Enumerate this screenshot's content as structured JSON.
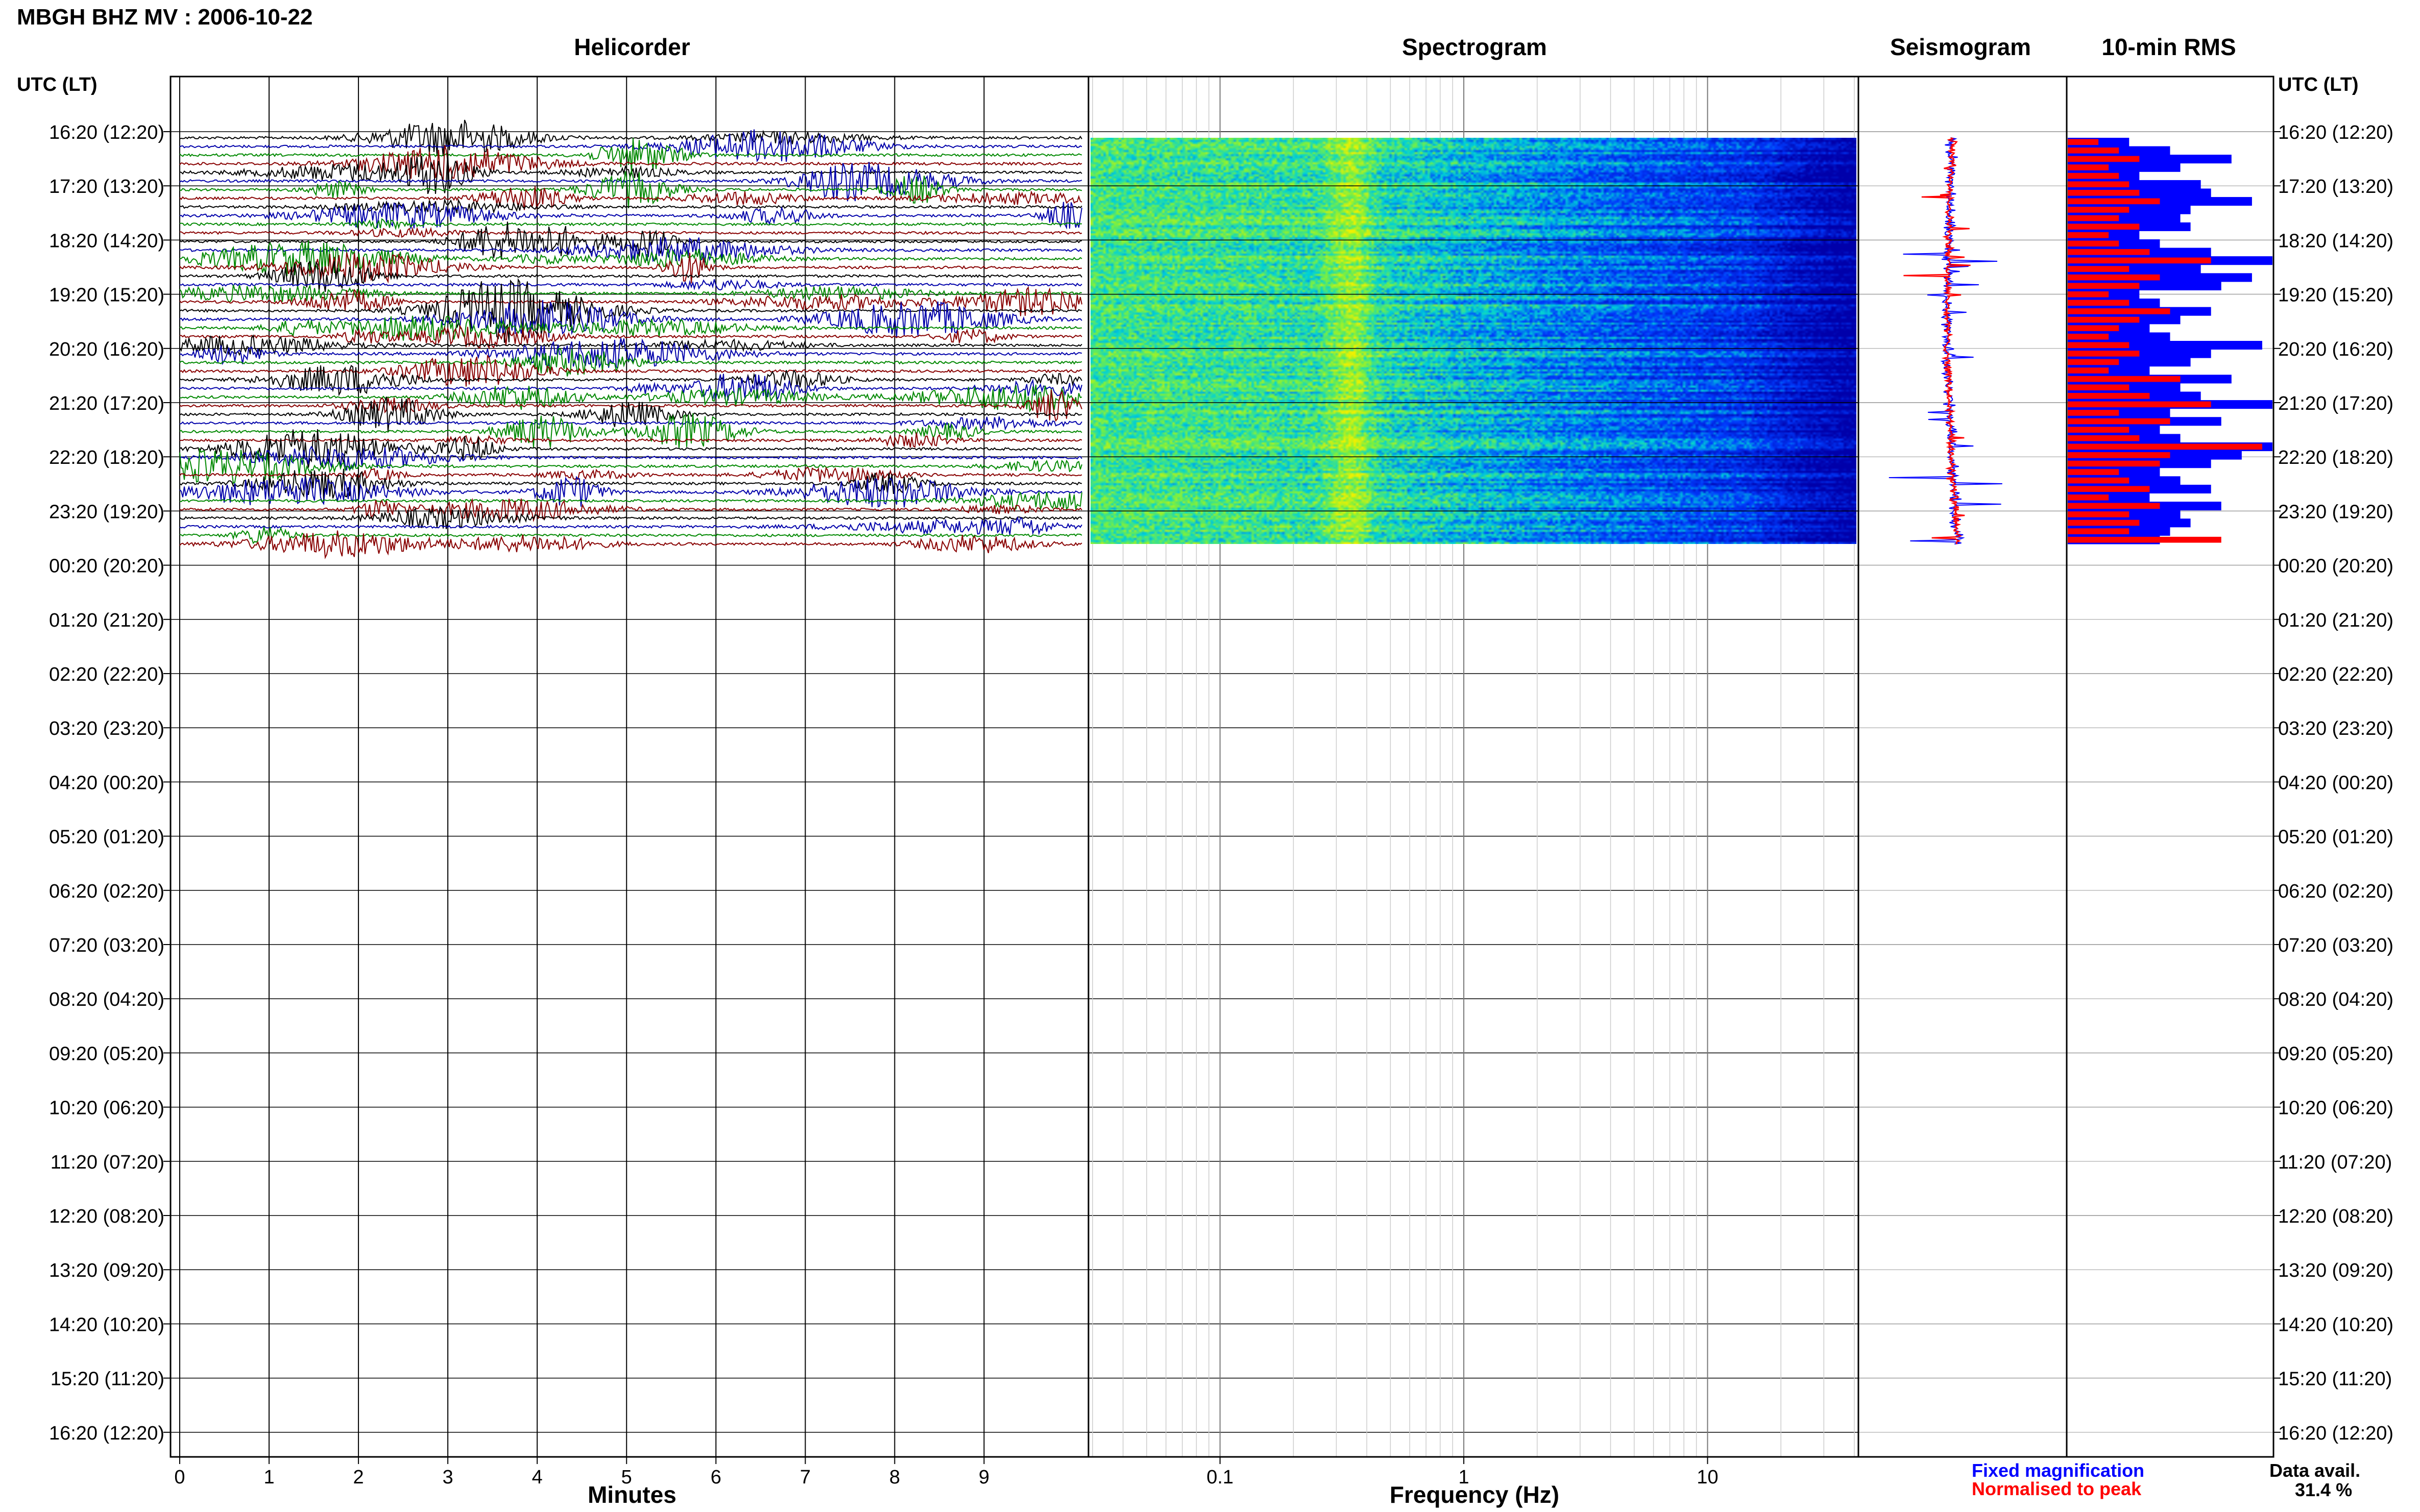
{
  "page_title": "MBGH BHZ MV : 2006-10-22",
  "axis_left_label": "UTC (LT)",
  "axis_right_label": "UTC (LT)",
  "panels": {
    "helicorder": "Helicorder",
    "spectrogram": "Spectrogram",
    "seismogram": "Seismogram",
    "rms": "10-min RMS"
  },
  "time_labels": [
    "16:20 (12:20)",
    "17:20 (13:20)",
    "18:20 (14:20)",
    "19:20 (15:20)",
    "20:20 (16:20)",
    "21:20 (17:20)",
    "22:20 (18:20)",
    "23:20 (19:20)",
    "00:20 (20:20)",
    "01:20 (21:20)",
    "02:20 (22:20)",
    "03:20 (23:20)",
    "04:20 (00:20)",
    "05:20 (01:20)",
    "06:20 (02:20)",
    "07:20 (03:20)",
    "08:20 (04:20)",
    "09:20 (05:20)",
    "10:20 (06:20)",
    "11:20 (07:20)",
    "12:20 (08:20)",
    "13:20 (09:20)",
    "14:20 (10:20)",
    "15:20 (11:20)",
    "16:20 (12:20)"
  ],
  "x_axes": {
    "minutes_label": "Minutes",
    "minutes_ticks": [
      "0",
      "1",
      "2",
      "3",
      "4",
      "5",
      "6",
      "7",
      "8",
      "9"
    ],
    "frequency_label": "Frequency (Hz)",
    "frequency_ticks": [
      "0.1",
      "1",
      "10"
    ]
  },
  "legend": {
    "fixed": "Fixed magnification",
    "normalised": "Normalised to peak",
    "fixed_color": "#0000ff",
    "normalised_color": "#ff0000"
  },
  "data_availability": {
    "label": "Data avail.",
    "value": "31.4 %"
  },
  "colors": {
    "trace_cycle": [
      "#000000",
      "#0000aa",
      "#008800",
      "#880000"
    ],
    "spectrogram_low": "#0000c8",
    "spectrogram_mid": "#00b4ff",
    "spectrogram_high": "#f0f000"
  },
  "chart_data": {
    "type": "heatmap",
    "title": "MBGH BHZ MV : 2006-10-22",
    "xlabel": "Frequency (Hz)",
    "ylabel": "UTC (LT)",
    "x_scale": "log",
    "xlim": [
      0.03,
      40
    ],
    "data_available_percent": 31.4,
    "rows_with_data_utc": [
      "16:20",
      "00:20"
    ],
    "rms_10min": {
      "fixed_magnification": [
        0.3,
        0.5,
        0.8,
        0.55,
        0.35,
        0.65,
        0.7,
        0.9,
        0.6,
        0.55,
        0.6,
        0.35,
        0.45,
        0.7,
        1.0,
        0.65,
        0.9,
        0.75,
        0.35,
        0.45,
        0.7,
        0.55,
        0.4,
        0.5,
        0.95,
        0.7,
        0.6,
        0.4,
        0.8,
        0.55,
        0.65,
        1.0,
        0.5,
        0.75,
        0.45,
        0.55,
        1.0,
        0.85,
        0.7,
        0.45,
        0.55,
        0.7,
        0.4,
        0.75,
        0.55,
        0.6,
        0.5,
        0.45
      ],
      "normalised_to_peak": [
        0.15,
        0.25,
        0.35,
        0.2,
        0.25,
        0.3,
        0.35,
        0.45,
        0.3,
        0.25,
        0.35,
        0.2,
        0.25,
        0.4,
        0.7,
        0.3,
        0.45,
        0.35,
        0.2,
        0.3,
        0.5,
        0.35,
        0.25,
        0.2,
        0.3,
        0.35,
        0.25,
        0.2,
        0.55,
        0.3,
        0.4,
        0.7,
        0.25,
        0.5,
        0.3,
        0.35,
        0.95,
        0.5,
        0.45,
        0.25,
        0.3,
        0.4,
        0.2,
        0.45,
        0.3,
        0.35,
        0.3,
        0.75
      ]
    }
  }
}
